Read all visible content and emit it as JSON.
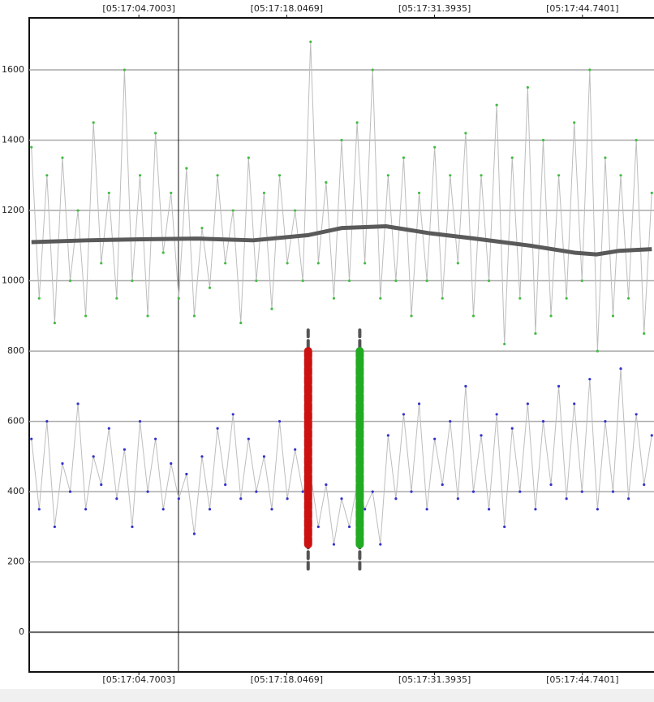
{
  "chart_data": {
    "type": "line",
    "x": [
      -5,
      -4.3,
      -3.6,
      -2.9,
      -2.2,
      -1.5,
      -0.8,
      -0.1,
      0.6,
      1.3,
      2,
      2.7,
      3.4,
      4.1,
      4.8,
      5.5,
      6.2,
      6.9,
      7.6,
      8.3,
      9,
      9.7,
      10.4,
      11.1,
      11.8,
      12.5,
      13.2,
      13.9,
      14.6,
      15.3,
      16,
      16.7,
      17.4,
      18.1,
      18.8,
      19.5,
      20.2,
      20.9,
      21.6,
      22.3,
      23,
      23.7,
      24.4,
      25.1,
      25.8,
      26.5,
      27.2,
      27.9,
      28.6,
      29.3,
      30,
      30.7,
      31.4,
      32.1,
      32.8,
      33.5,
      34.2,
      34.9,
      35.6,
      36.3,
      37,
      37.7,
      38.4,
      39.1,
      39.8,
      40.5,
      41.2,
      41.9,
      42.6,
      43.3,
      44,
      44.7,
      45.4,
      46.1,
      46.8,
      47.5,
      48.2,
      48.9,
      49.6,
      50.3,
      51
    ],
    "series": [
      {
        "color": "#44bb44",
        "values": [
          1380,
          950,
          1300,
          880,
          1350,
          1000,
          1200,
          900,
          1450,
          1050,
          1250,
          950,
          1600,
          1000,
          1300,
          900,
          1420,
          1080,
          1250,
          950,
          1320,
          900,
          1150,
          980,
          1300,
          1050,
          1200,
          880,
          1350,
          1000,
          1250,
          920,
          1300,
          1050,
          1200,
          1000,
          1680,
          1050,
          1280,
          950,
          1400,
          1000,
          1450,
          1050,
          1600,
          950,
          1300,
          1000,
          1350,
          900,
          1250,
          1000,
          1380,
          950,
          1300,
          1050,
          1420,
          900,
          1300,
          1000,
          1500,
          820,
          1350,
          950,
          1550,
          850,
          1400,
          900,
          1300,
          950,
          1450,
          1000,
          1600,
          800,
          1350,
          900,
          1300,
          950,
          1400,
          850,
          1250
        ]
      },
      {
        "color": "#3333cc",
        "values": [
          550,
          350,
          600,
          300,
          480,
          400,
          650,
          350,
          500,
          420,
          580,
          380,
          520,
          300,
          600,
          400,
          550,
          350,
          480,
          380,
          450,
          280,
          500,
          350,
          580,
          420,
          620,
          380,
          550,
          400,
          500,
          350,
          600,
          380,
          520,
          400,
          450,
          300,
          420,
          250,
          380,
          300,
          420,
          350,
          400,
          250,
          560,
          380,
          620,
          400,
          650,
          350,
          550,
          420,
          600,
          380,
          700,
          400,
          560,
          350,
          620,
          300,
          580,
          400,
          650,
          350,
          600,
          420,
          700,
          380,
          650,
          400,
          720,
          350,
          600,
          400,
          750,
          380,
          620,
          420,
          560
        ]
      }
    ],
    "trend": {
      "color": "#5a5a5a",
      "x": [
        -5,
        0,
        5,
        10,
        15,
        20,
        23,
        27,
        31,
        35,
        40,
        44,
        46,
        48,
        51
      ],
      "values": [
        1110,
        1115,
        1118,
        1120,
        1115,
        1130,
        1150,
        1155,
        1135,
        1120,
        1100,
        1080,
        1075,
        1085,
        1090
      ]
    },
    "markers": [
      {
        "x": 19.98,
        "color": "#cc1111",
        "y_range": [
          180,
          860
        ],
        "fill_range": [
          250,
          800
        ]
      },
      {
        "x": 24.64,
        "color": "#22aa22",
        "y_range": [
          180,
          860
        ],
        "fill_range": [
          250,
          800
        ]
      }
    ],
    "cursor_x": 8.27,
    "xlim": [
      -5.2,
      51.2
    ],
    "xticks": [
      {
        "value": 4.7003,
        "label": "[05:17:04.7003]"
      },
      {
        "value": 18.0469,
        "label": "[05:17:18.0469]"
      },
      {
        "value": 31.3935,
        "label": "[05:17:31.3935]"
      },
      {
        "value": 44.7401,
        "label": "[05:17:44.7401]"
      }
    ],
    "ylim": [
      -113,
      1748
    ],
    "yticks": [
      0,
      200,
      400,
      600,
      800,
      1000,
      1200,
      1400,
      1600
    ],
    "grid": true
  }
}
